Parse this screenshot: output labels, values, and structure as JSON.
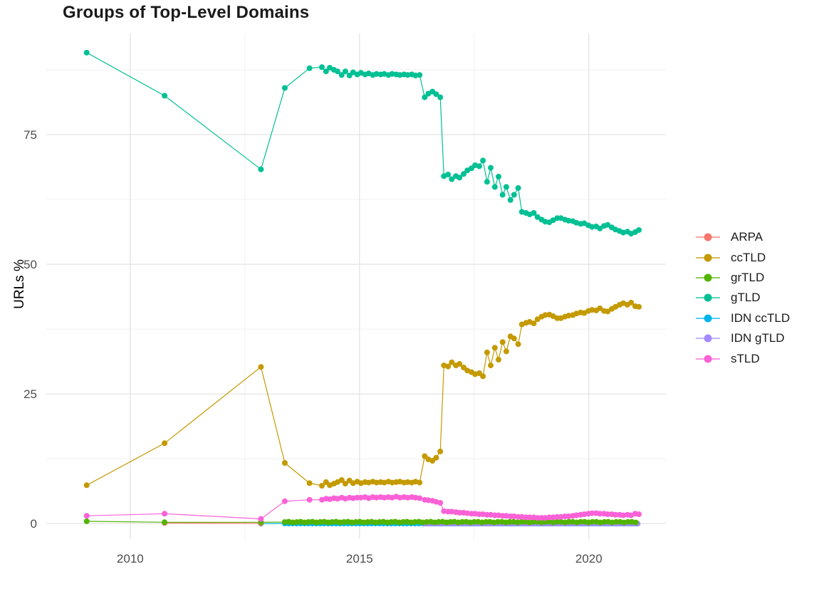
{
  "title": "Groups of Top-Level Domains",
  "y_axis_title": "URLs %",
  "chart_data": {
    "type": "line",
    "title": "Groups of Top-Level Domains",
    "xlabel": "",
    "ylabel": "URLs %",
    "x_ticks": [
      2010,
      2015,
      2020
    ],
    "x_minor_gridlines": [
      2012.5,
      2017.5
    ],
    "y_ticks": [
      0,
      25,
      50,
      75
    ],
    "y_minor_gridlines": [
      12.5,
      37.5,
      62.5,
      87.5
    ],
    "xlim": [
      2008.17,
      2021.68
    ],
    "ylim": [
      -3.0,
      94.5
    ],
    "grid": "on",
    "legend_position": "right",
    "point_radius": 4,
    "line_width": 1.2,
    "major_grid_color": "#e3e3e3",
    "minor_grid_color": "#f0f0f0",
    "tick_label_color": "#4d4d4d",
    "draw_order": [
      "IDN ccTLD",
      "IDN gTLD",
      "ARPA",
      "grTLD",
      "ccTLD",
      "gTLD",
      "sTLD"
    ],
    "series": [
      {
        "name": "ARPA",
        "color": "#F8766D",
        "points": [
          [
            2010.75,
            0.1
          ],
          [
            2012.85,
            0.05
          ]
        ]
      },
      {
        "name": "ccTLD",
        "color": "#C49A00",
        "points": [
          [
            2009.05,
            7.4
          ],
          [
            2010.75,
            15.5
          ],
          [
            2012.85,
            30.2
          ],
          [
            2013.37,
            11.7
          ],
          [
            2013.91,
            7.8
          ],
          [
            2014.18,
            7.3
          ],
          [
            2014.27,
            8.0
          ],
          [
            2014.35,
            7.4
          ],
          [
            2014.44,
            7.7
          ],
          [
            2014.52,
            8.0
          ],
          [
            2014.61,
            8.4
          ],
          [
            2014.69,
            7.7
          ],
          [
            2014.78,
            8.3
          ],
          [
            2014.86,
            7.8
          ],
          [
            2014.95,
            8.1
          ],
          [
            2015.03,
            7.8
          ],
          [
            2015.12,
            8.0
          ],
          [
            2015.2,
            7.9
          ],
          [
            2015.29,
            8.1
          ],
          [
            2015.37,
            7.9
          ],
          [
            2015.46,
            8.0
          ],
          [
            2015.54,
            7.9
          ],
          [
            2015.63,
            8.1
          ],
          [
            2015.71,
            7.9
          ],
          [
            2015.8,
            8.0
          ],
          [
            2015.88,
            8.1
          ],
          [
            2015.97,
            7.9
          ],
          [
            2016.05,
            8.0
          ],
          [
            2016.14,
            7.9
          ],
          [
            2016.22,
            8.1
          ],
          [
            2016.31,
            7.9
          ],
          [
            2016.42,
            13.0
          ],
          [
            2016.5,
            12.4
          ],
          [
            2016.59,
            12.1
          ],
          [
            2016.67,
            12.7
          ],
          [
            2016.76,
            13.9
          ],
          [
            2016.84,
            30.5
          ],
          [
            2016.93,
            30.3
          ],
          [
            2017.01,
            31.1
          ],
          [
            2017.1,
            30.5
          ],
          [
            2017.18,
            30.8
          ],
          [
            2017.27,
            30.1
          ],
          [
            2017.35,
            29.5
          ],
          [
            2017.44,
            29.2
          ],
          [
            2017.52,
            28.8
          ],
          [
            2017.61,
            29.0
          ],
          [
            2017.69,
            28.4
          ],
          [
            2017.78,
            33.0
          ],
          [
            2017.86,
            30.5
          ],
          [
            2017.95,
            33.9
          ],
          [
            2018.03,
            31.6
          ],
          [
            2018.12,
            35.0
          ],
          [
            2018.2,
            33.2
          ],
          [
            2018.29,
            36.1
          ],
          [
            2018.37,
            35.7
          ],
          [
            2018.46,
            34.6
          ],
          [
            2018.54,
            38.4
          ],
          [
            2018.63,
            38.7
          ],
          [
            2018.71,
            38.9
          ],
          [
            2018.8,
            38.6
          ],
          [
            2018.88,
            39.4
          ],
          [
            2018.97,
            39.9
          ],
          [
            2019.05,
            40.2
          ],
          [
            2019.14,
            40.3
          ],
          [
            2019.22,
            40.0
          ],
          [
            2019.31,
            39.6
          ],
          [
            2019.39,
            39.6
          ],
          [
            2019.48,
            39.9
          ],
          [
            2019.56,
            40.1
          ],
          [
            2019.65,
            40.2
          ],
          [
            2019.73,
            40.5
          ],
          [
            2019.82,
            40.7
          ],
          [
            2019.9,
            40.6
          ],
          [
            2019.99,
            41.0
          ],
          [
            2020.07,
            41.2
          ],
          [
            2020.16,
            41.1
          ],
          [
            2020.24,
            41.5
          ],
          [
            2020.33,
            41.0
          ],
          [
            2020.41,
            40.9
          ],
          [
            2020.5,
            41.4
          ],
          [
            2020.58,
            41.8
          ],
          [
            2020.67,
            42.2
          ],
          [
            2020.75,
            42.5
          ],
          [
            2020.84,
            42.2
          ],
          [
            2020.92,
            42.6
          ],
          [
            2021.01,
            41.9
          ],
          [
            2021.09,
            41.8
          ]
        ]
      },
      {
        "name": "grTLD",
        "color": "#53B400",
        "points": [
          [
            2009.05,
            0.45
          ],
          [
            2010.75,
            0.25
          ],
          [
            2012.85,
            0.25
          ]
        ],
        "flat": {
          "from": 2013.37,
          "to": 2021.09,
          "step": 0.086,
          "value": 0.3,
          "amp": 0.08
        }
      },
      {
        "name": "gTLD",
        "color": "#00C094",
        "points": [
          [
            2009.05,
            90.8
          ],
          [
            2010.75,
            82.5
          ],
          [
            2012.85,
            68.3
          ],
          [
            2013.37,
            84.0
          ],
          [
            2013.91,
            87.8
          ],
          [
            2014.18,
            88.0
          ],
          [
            2014.27,
            87.2
          ],
          [
            2014.35,
            87.9
          ],
          [
            2014.44,
            87.5
          ],
          [
            2014.52,
            87.2
          ],
          [
            2014.61,
            86.5
          ],
          [
            2014.69,
            87.2
          ],
          [
            2014.78,
            86.4
          ],
          [
            2014.86,
            87.0
          ],
          [
            2014.95,
            86.6
          ],
          [
            2015.03,
            86.9
          ],
          [
            2015.12,
            86.6
          ],
          [
            2015.2,
            86.8
          ],
          [
            2015.29,
            86.5
          ],
          [
            2015.37,
            86.7
          ],
          [
            2015.46,
            86.6
          ],
          [
            2015.54,
            86.7
          ],
          [
            2015.63,
            86.5
          ],
          [
            2015.71,
            86.7
          ],
          [
            2015.8,
            86.6
          ],
          [
            2015.88,
            86.5
          ],
          [
            2015.97,
            86.6
          ],
          [
            2016.05,
            86.5
          ],
          [
            2016.14,
            86.6
          ],
          [
            2016.22,
            86.4
          ],
          [
            2016.31,
            86.5
          ],
          [
            2016.42,
            82.2
          ],
          [
            2016.5,
            82.9
          ],
          [
            2016.59,
            83.3
          ],
          [
            2016.67,
            82.8
          ],
          [
            2016.76,
            82.2
          ],
          [
            2016.84,
            67.0
          ],
          [
            2016.93,
            67.3
          ],
          [
            2017.01,
            66.4
          ],
          [
            2017.1,
            67.0
          ],
          [
            2017.18,
            66.7
          ],
          [
            2017.27,
            67.4
          ],
          [
            2017.35,
            68.1
          ],
          [
            2017.44,
            68.5
          ],
          [
            2017.52,
            69.1
          ],
          [
            2017.61,
            68.9
          ],
          [
            2017.69,
            70.0
          ],
          [
            2017.78,
            65.9
          ],
          [
            2017.86,
            68.6
          ],
          [
            2017.95,
            64.9
          ],
          [
            2018.03,
            66.9
          ],
          [
            2018.12,
            63.4
          ],
          [
            2018.2,
            64.9
          ],
          [
            2018.29,
            62.4
          ],
          [
            2018.37,
            63.4
          ],
          [
            2018.46,
            64.7
          ],
          [
            2018.54,
            60.1
          ],
          [
            2018.63,
            59.9
          ],
          [
            2018.71,
            59.6
          ],
          [
            2018.8,
            59.9
          ],
          [
            2018.88,
            59.1
          ],
          [
            2018.97,
            58.6
          ],
          [
            2019.05,
            58.2
          ],
          [
            2019.14,
            58.1
          ],
          [
            2019.22,
            58.5
          ],
          [
            2019.31,
            58.9
          ],
          [
            2019.39,
            58.9
          ],
          [
            2019.48,
            58.6
          ],
          [
            2019.56,
            58.4
          ],
          [
            2019.65,
            58.3
          ],
          [
            2019.73,
            58.0
          ],
          [
            2019.82,
            57.8
          ],
          [
            2019.9,
            57.9
          ],
          [
            2019.99,
            57.5
          ],
          [
            2020.07,
            57.2
          ],
          [
            2020.16,
            57.3
          ],
          [
            2020.24,
            56.9
          ],
          [
            2020.33,
            57.4
          ],
          [
            2020.41,
            57.6
          ],
          [
            2020.5,
            57.1
          ],
          [
            2020.58,
            56.7
          ],
          [
            2020.67,
            56.4
          ],
          [
            2020.75,
            56.1
          ],
          [
            2020.84,
            56.3
          ],
          [
            2020.92,
            55.9
          ],
          [
            2021.01,
            56.2
          ],
          [
            2021.09,
            56.6
          ]
        ]
      },
      {
        "name": "IDN ccTLD",
        "color": "#00B6EB",
        "points": [
          [
            2012.85,
            0.0
          ]
        ],
        "flat": {
          "from": 2013.37,
          "to": 2021.09,
          "step": 0.086,
          "value": 0.02,
          "amp": 0
        }
      },
      {
        "name": "IDN gTLD",
        "color": "#A58AFF",
        "points": [],
        "flat": {
          "from": 2016.42,
          "to": 2021.09,
          "step": 0.086,
          "value": 0.0,
          "amp": 0
        }
      },
      {
        "name": "sTLD",
        "color": "#FB61D7",
        "points": [
          [
            2009.05,
            1.5
          ],
          [
            2010.75,
            1.9
          ],
          [
            2012.85,
            0.9
          ],
          [
            2013.37,
            4.3
          ],
          [
            2013.91,
            4.6
          ],
          [
            2014.18,
            4.6
          ],
          [
            2014.27,
            4.8
          ],
          [
            2014.35,
            4.7
          ],
          [
            2014.44,
            4.9
          ],
          [
            2014.52,
            4.8
          ],
          [
            2014.61,
            5.0
          ],
          [
            2014.69,
            4.8
          ],
          [
            2014.78,
            5.0
          ],
          [
            2014.86,
            4.9
          ],
          [
            2014.95,
            5.0
          ],
          [
            2015.03,
            5.0
          ],
          [
            2015.12,
            5.1
          ],
          [
            2015.2,
            4.9
          ],
          [
            2015.29,
            5.1
          ],
          [
            2015.37,
            5.0
          ],
          [
            2015.46,
            5.1
          ],
          [
            2015.54,
            5.0
          ],
          [
            2015.63,
            5.1
          ],
          [
            2015.71,
            5.0
          ],
          [
            2015.8,
            5.2
          ],
          [
            2015.88,
            5.0
          ],
          [
            2015.97,
            5.1
          ],
          [
            2016.05,
            5.0
          ],
          [
            2016.14,
            5.1
          ],
          [
            2016.22,
            5.0
          ],
          [
            2016.31,
            4.9
          ],
          [
            2016.42,
            4.6
          ],
          [
            2016.5,
            4.5
          ],
          [
            2016.59,
            4.4
          ],
          [
            2016.67,
            4.2
          ],
          [
            2016.76,
            4.0
          ],
          [
            2016.84,
            2.4
          ],
          [
            2016.93,
            2.3
          ],
          [
            2017.01,
            2.3
          ],
          [
            2017.1,
            2.2
          ],
          [
            2017.18,
            2.1
          ],
          [
            2017.27,
            2.1
          ],
          [
            2017.35,
            2.0
          ],
          [
            2017.44,
            1.9
          ],
          [
            2017.52,
            1.9
          ],
          [
            2017.61,
            1.8
          ],
          [
            2017.69,
            1.8
          ],
          [
            2017.78,
            1.7
          ],
          [
            2017.86,
            1.7
          ],
          [
            2017.95,
            1.6
          ],
          [
            2018.03,
            1.6
          ],
          [
            2018.12,
            1.5
          ],
          [
            2018.2,
            1.5
          ],
          [
            2018.29,
            1.4
          ],
          [
            2018.37,
            1.4
          ],
          [
            2018.46,
            1.3
          ],
          [
            2018.54,
            1.3
          ],
          [
            2018.63,
            1.2
          ],
          [
            2018.71,
            1.2
          ],
          [
            2018.8,
            1.2
          ],
          [
            2018.88,
            1.1
          ],
          [
            2018.97,
            1.1
          ],
          [
            2019.05,
            1.1
          ],
          [
            2019.14,
            1.2
          ],
          [
            2019.22,
            1.2
          ],
          [
            2019.31,
            1.3
          ],
          [
            2019.39,
            1.3
          ],
          [
            2019.48,
            1.4
          ],
          [
            2019.56,
            1.4
          ],
          [
            2019.65,
            1.5
          ],
          [
            2019.73,
            1.6
          ],
          [
            2019.82,
            1.7
          ],
          [
            2019.9,
            1.8
          ],
          [
            2019.99,
            1.9
          ],
          [
            2020.07,
            2.0
          ],
          [
            2020.16,
            2.0
          ],
          [
            2020.24,
            1.9
          ],
          [
            2020.33,
            1.9
          ],
          [
            2020.41,
            1.8
          ],
          [
            2020.5,
            1.8
          ],
          [
            2020.58,
            1.7
          ],
          [
            2020.67,
            1.7
          ],
          [
            2020.75,
            1.6
          ],
          [
            2020.84,
            1.7
          ],
          [
            2020.92,
            1.6
          ],
          [
            2021.01,
            1.9
          ],
          [
            2021.09,
            1.8
          ]
        ]
      }
    ]
  }
}
